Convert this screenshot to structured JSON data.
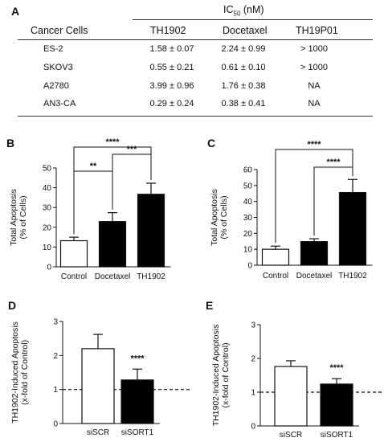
{
  "panel_labels": {
    "a": "A",
    "b": "B",
    "c": "C",
    "d": "D",
    "e": "E"
  },
  "table": {
    "group_header": "IC",
    "group_header_sub": "50",
    "group_header_unit": " (nM)",
    "row_header": "Cancer Cells",
    "columns": [
      "TH1902",
      "Docetaxel",
      "TH19P01"
    ],
    "rows": [
      {
        "cell": "ES-2",
        "values": [
          "1.58 ± 0.07",
          "2.24 ± 0.99",
          "> 1000"
        ]
      },
      {
        "cell": "SKOV3",
        "values": [
          "0.55 ± 0.21",
          "0.61 ± 0.10",
          "> 1000"
        ]
      },
      {
        "cell": "A2780",
        "values": [
          "3.99 ± 0.96",
          "1.76 ± 0.38",
          "NA"
        ]
      },
      {
        "cell": "AN3-CA",
        "values": [
          "0.29 ± 0.24",
          "0.38 ± 0.41",
          "NA"
        ]
      }
    ]
  },
  "colors": {
    "bar_filled": "#000000",
    "bar_open": "#ffffff",
    "axis": "#111111"
  },
  "chart_data": [
    {
      "panel": "B",
      "type": "bar",
      "categories": [
        "Control",
        "Docetaxel",
        "TH1902"
      ],
      "values": [
        13.2,
        22.9,
        36.7
      ],
      "errors": [
        1.8,
        4.5,
        5.6
      ],
      "fills": [
        "open",
        "filled",
        "filled"
      ],
      "ylabel": "Total Apoptosis\n(% of Cells)",
      "ylim": [
        0,
        50
      ],
      "yticks": [
        0,
        10,
        20,
        30,
        40,
        50
      ],
      "significance": [
        {
          "from": 0,
          "to": 1,
          "label": "**"
        },
        {
          "from": 1,
          "to": 2,
          "label": "***"
        },
        {
          "from": 0,
          "to": 2,
          "label": "****"
        }
      ]
    },
    {
      "panel": "C",
      "type": "bar",
      "categories": [
        "Control",
        "Docetaxel",
        "TH1902"
      ],
      "values": [
        10,
        14.8,
        45.6
      ],
      "errors": [
        2.0,
        1.8,
        8.2
      ],
      "fills": [
        "open",
        "filled",
        "filled"
      ],
      "ylabel": "Total Apoptosis\n(% of Cells)",
      "ylim": [
        0,
        60
      ],
      "yticks": [
        0,
        10,
        20,
        30,
        40,
        50,
        60
      ],
      "significance": [
        {
          "from": 1,
          "to": 2,
          "label": "****"
        },
        {
          "from": 0,
          "to": 2,
          "label": "****"
        }
      ]
    },
    {
      "panel": "D",
      "type": "bar",
      "categories": [
        "siSCR",
        "siSORT1"
      ],
      "values": [
        2.2,
        1.28
      ],
      "errors": [
        0.42,
        0.32
      ],
      "fills": [
        "open",
        "filled"
      ],
      "ylabel": "TH1902-Induced Apoptosis\n(x-fold of Control)",
      "ylim": [
        0,
        3
      ],
      "yticks": [
        0,
        1,
        2,
        3
      ],
      "reference_line": 1,
      "bar_annotations": [
        {
          "index": 1,
          "label": "****"
        }
      ]
    },
    {
      "panel": "E",
      "type": "bar",
      "categories": [
        "siSCR",
        "siSORT1"
      ],
      "values": [
        1.76,
        1.24
      ],
      "errors": [
        0.17,
        0.16
      ],
      "fills": [
        "open",
        "filled"
      ],
      "ylabel": "TH1902-Induced Apoptosis\n(x-fold of Control)",
      "ylim": [
        0,
        3
      ],
      "yticks": [
        0,
        1,
        2,
        3
      ],
      "reference_line": 1,
      "bar_annotations": [
        {
          "index": 1,
          "label": "****"
        }
      ]
    }
  ]
}
